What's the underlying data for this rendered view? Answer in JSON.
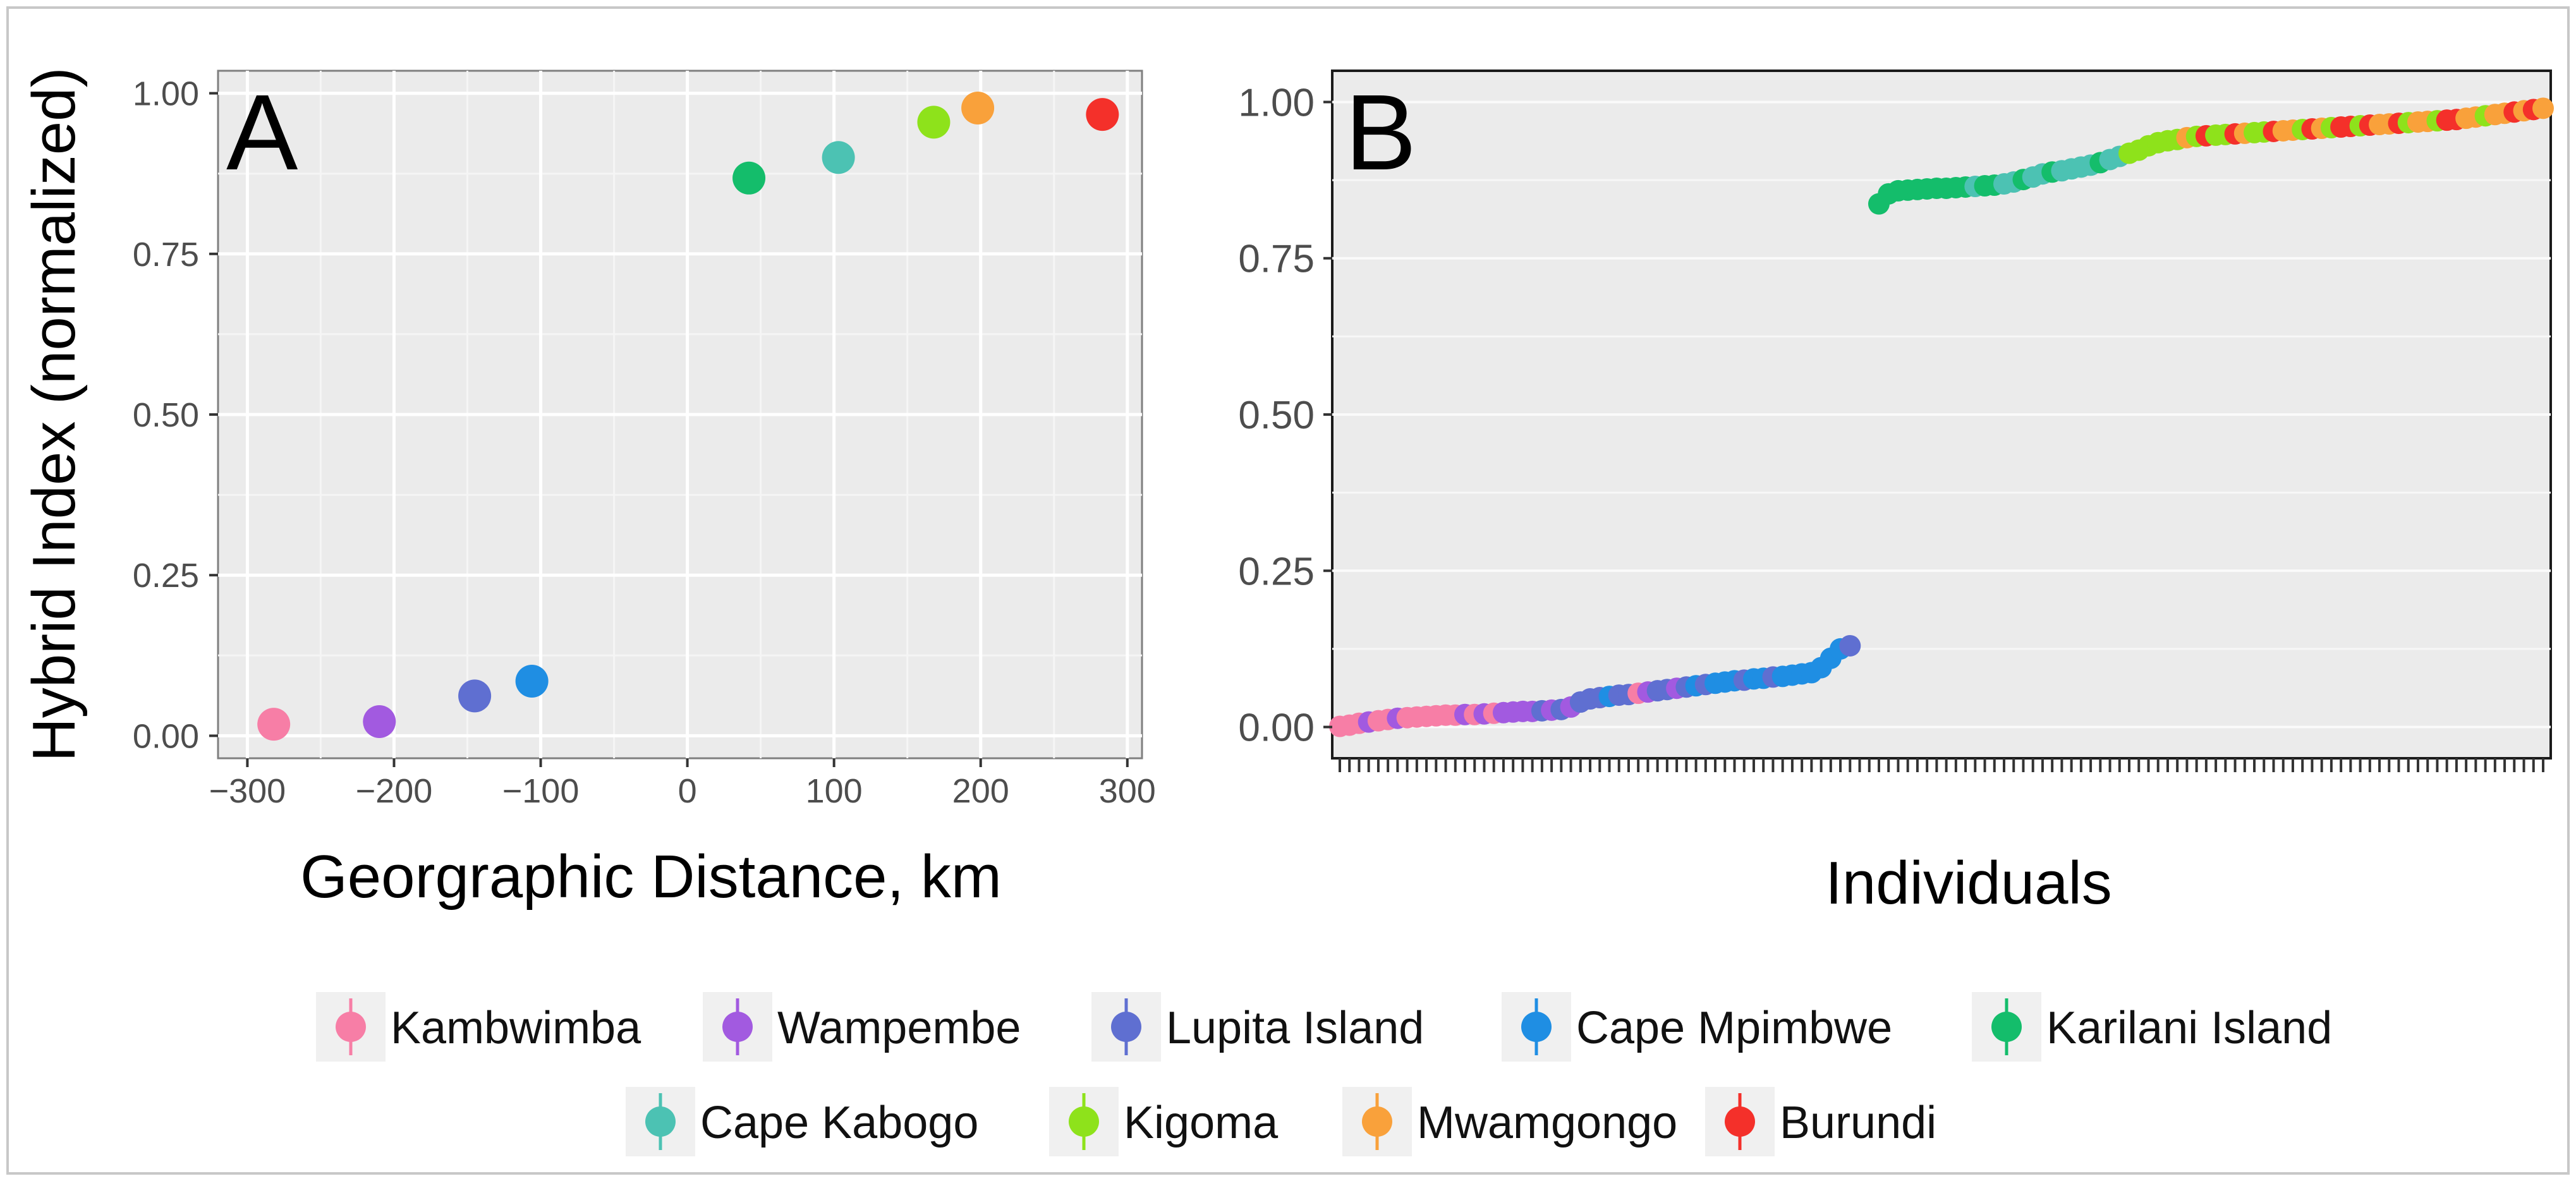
{
  "chart_data": [
    {
      "type": "scatter",
      "panel_label": "A",
      "title": "",
      "xlabel": "Georgraphic Distance, km",
      "ylabel": "Hybrid Index (normalized)",
      "xlim": [
        -320,
        310
      ],
      "ylim": [
        -0.035,
        1.035
      ],
      "x_ticks": [
        -300,
        -200,
        -100,
        0,
        100,
        200,
        300
      ],
      "x_tick_labels": [
        "−300",
        "−200",
        "−100",
        "0",
        "100",
        "200",
        "300"
      ],
      "y_ticks": [
        0.0,
        0.25,
        0.5,
        0.75,
        1.0
      ],
      "y_tick_labels": [
        "0.00",
        "0.25",
        "0.50",
        "0.75",
        "1.00"
      ],
      "grid": true,
      "points": [
        {
          "population": "Kambwimba",
          "x": -282,
          "y": 0.018
        },
        {
          "population": "Wampembe",
          "x": -210,
          "y": 0.022
        },
        {
          "population": "Lupita Island",
          "x": -145,
          "y": 0.062
        },
        {
          "population": "Cape Mpimbwe",
          "x": -106,
          "y": 0.085
        },
        {
          "population": "Karilani Island",
          "x": 42,
          "y": 0.868
        },
        {
          "population": "Cape Kabogo",
          "x": 103,
          "y": 0.9
        },
        {
          "population": "Kigoma",
          "x": 168,
          "y": 0.955
        },
        {
          "population": "Mwamgongo",
          "x": 198,
          "y": 0.977
        },
        {
          "population": "Burundi",
          "x": 283,
          "y": 0.967
        }
      ]
    },
    {
      "type": "scatter",
      "panel_label": "B",
      "title": "",
      "xlabel": "Individuals",
      "ylabel": "",
      "ylim": [
        -0.05,
        1.05
      ],
      "y_ticks": [
        0.0,
        0.25,
        0.5,
        0.75,
        1.0
      ],
      "y_tick_labels": [
        "0.00",
        "0.25",
        "0.50",
        "0.75",
        "1.00"
      ],
      "grid": true,
      "n_individuals": 126,
      "segments": [
        {
          "start": 0,
          "y_values": [
            0.001,
            0.003,
            0.006,
            0.008,
            0.01,
            0.012,
            0.014,
            0.015,
            0.016,
            0.017,
            0.018,
            0.019,
            0.019,
            0.02,
            0.02,
            0.021,
            0.022,
            0.023,
            0.024,
            0.025,
            0.025,
            0.026,
            0.027,
            0.028,
            0.032,
            0.04,
            0.045,
            0.047,
            0.049,
            0.051,
            0.052,
            0.054,
            0.056,
            0.058,
            0.06,
            0.062,
            0.064,
            0.066,
            0.068,
            0.07,
            0.072,
            0.074,
            0.075,
            0.077,
            0.078,
            0.08,
            0.081,
            0.083,
            0.085,
            0.087,
            0.095,
            0.11,
            0.125,
            0.13
          ],
          "populations": [
            "Kambwimba",
            "Kambwimba",
            "Kambwimba",
            "Wampembe",
            "Kambwimba",
            "Kambwimba",
            "Wampembe",
            "Kambwimba",
            "Kambwimba",
            "Kambwimba",
            "Kambwimba",
            "Kambwimba",
            "Kambwimba",
            "Wampembe",
            "Kambwimba",
            "Wampembe",
            "Kambwimba",
            "Wampembe",
            "Wampembe",
            "Wampembe",
            "Wampembe",
            "Lupita Island",
            "Wampembe",
            "Lupita Island",
            "Wampembe",
            "Lupita Island",
            "Lupita Island",
            "Lupita Island",
            "Cape Mpimbwe",
            "Lupita Island",
            "Lupita Island",
            "Kambwimba",
            "Wampembe",
            "Lupita Island",
            "Lupita Island",
            "Wampembe",
            "Lupita Island",
            "Cape Mpimbwe",
            "Lupita Island",
            "Cape Mpimbwe",
            "Cape Mpimbwe",
            "Cape Mpimbwe",
            "Lupita Island",
            "Cape Mpimbwe",
            "Cape Mpimbwe",
            "Lupita Island",
            "Cape Mpimbwe",
            "Cape Mpimbwe",
            "Cape Mpimbwe",
            "Cape Mpimbwe",
            "Cape Mpimbwe",
            "Cape Mpimbwe",
            "Cape Mpimbwe",
            "Lupita Island"
          ]
        },
        {
          "start": 56,
          "y_values": [
            0.837,
            0.853,
            0.858,
            0.859,
            0.86,
            0.861,
            0.862,
            0.862,
            0.863,
            0.864,
            0.865,
            0.866,
            0.867,
            0.869,
            0.872,
            0.876,
            0.88,
            0.885,
            0.888,
            0.89,
            0.893,
            0.896,
            0.899,
            0.903,
            0.908,
            0.913,
            0.918,
            0.923,
            0.93,
            0.935,
            0.938,
            0.94,
            0.943,
            0.945,
            0.946,
            0.947,
            0.948,
            0.949,
            0.95,
            0.951,
            0.952,
            0.953,
            0.954,
            0.955,
            0.956,
            0.957,
            0.958,
            0.959,
            0.96,
            0.961,
            0.962,
            0.963,
            0.964,
            0.965,
            0.966,
            0.967,
            0.968,
            0.969,
            0.97,
            0.971,
            0.972,
            0.974,
            0.976,
            0.978,
            0.98,
            0.982,
            0.984,
            0.986,
            0.988,
            0.99
          ],
          "populations": [
            "Karilani Island",
            "Karilani Island",
            "Karilani Island",
            "Karilani Island",
            "Karilani Island",
            "Karilani Island",
            "Karilani Island",
            "Karilani Island",
            "Karilani Island",
            "Karilani Island",
            "Cape Kabogo",
            "Karilani Island",
            "Karilani Island",
            "Cape Kabogo",
            "Cape Kabogo",
            "Karilani Island",
            "Cape Kabogo",
            "Cape Kabogo",
            "Karilani Island",
            "Cape Kabogo",
            "Cape Kabogo",
            "Cape Kabogo",
            "Cape Kabogo",
            "Karilani Island",
            "Cape Kabogo",
            "Cape Kabogo",
            "Kigoma",
            "Kigoma",
            "Kigoma",
            "Kigoma",
            "Kigoma",
            "Kigoma",
            "Mwamgongo",
            "Kigoma",
            "Burundi",
            "Kigoma",
            "Kigoma",
            "Burundi",
            "Mwamgongo",
            "Kigoma",
            "Kigoma",
            "Burundi",
            "Mwamgongo",
            "Mwamgongo",
            "Kigoma",
            "Burundi",
            "Mwamgongo",
            "Kigoma",
            "Burundi",
            "Burundi",
            "Kigoma",
            "Burundi",
            "Mwamgongo",
            "Mwamgongo",
            "Burundi",
            "Kigoma",
            "Mwamgongo",
            "Mwamgongo",
            "Kigoma",
            "Burundi",
            "Burundi",
            "Mwamgongo",
            "Mwamgongo",
            "Kigoma",
            "Mwamgongo",
            "Mwamgongo",
            "Burundi",
            "Mwamgongo",
            "Burundi",
            "Mwamgongo"
          ]
        }
      ]
    }
  ],
  "legend": {
    "items": [
      {
        "label": "Kambwimba",
        "color": "#f77ea6"
      },
      {
        "label": "Wampembe",
        "color": "#a25ae0"
      },
      {
        "label": "Lupita Island",
        "color": "#5f6fd1"
      },
      {
        "label": "Cape Mpimbwe",
        "color": "#1f8ee3"
      },
      {
        "label": "Karilani Island",
        "color": "#14bd6b"
      },
      {
        "label": "Cape Kabogo",
        "color": "#4cc2b3"
      },
      {
        "label": "Kigoma",
        "color": "#8ee21b"
      },
      {
        "label": "Mwamgongo",
        "color": "#f9a13b"
      },
      {
        "label": "Burundi",
        "color": "#f4302a"
      }
    ]
  }
}
